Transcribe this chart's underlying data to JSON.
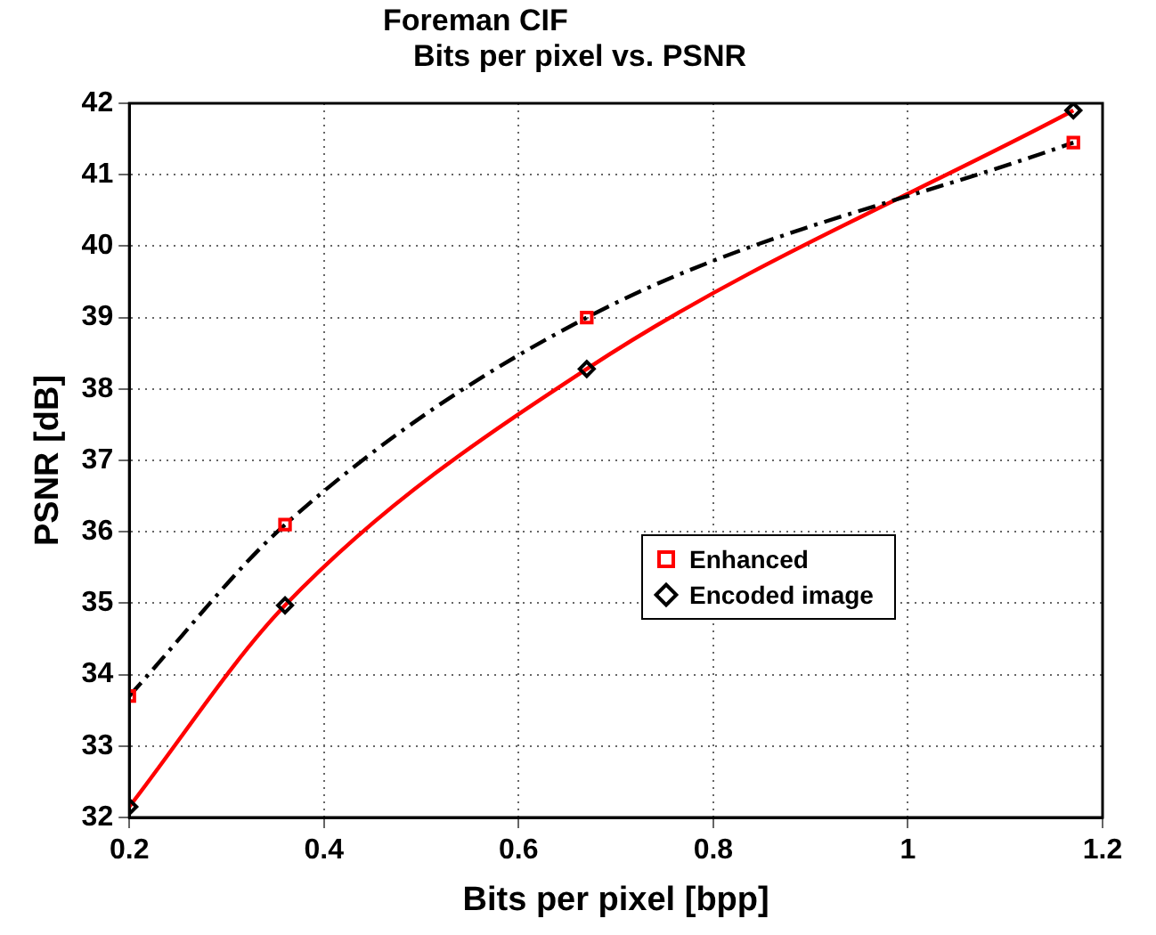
{
  "chart_data": {
    "type": "scatter",
    "title": "Foreman CIF",
    "subtitle": "Bits per pixel vs. PSNR",
    "xlabel": "Bits per pixel [bpp]",
    "ylabel": "PSNR [dB]",
    "xlim": [
      0.2,
      1.2
    ],
    "xticks": [
      0.2,
      0.4,
      0.6,
      0.8,
      1,
      1.2
    ],
    "ylim": [
      32,
      42
    ],
    "yticks": [
      32,
      33,
      34,
      35,
      36,
      37,
      38,
      39,
      40,
      41,
      42
    ],
    "grid": true,
    "legend": "right",
    "series": [
      {
        "name": "Enhanced",
        "type": "scatter",
        "color": "#ff0000",
        "marker": "square",
        "x": [
          0.2,
          0.36,
          0.67,
          1.17
        ],
        "values": [
          33.7,
          36.1,
          39.0,
          41.45
        ]
      },
      {
        "name": "Encoded image",
        "type": "scatter",
        "color": "#000000",
        "marker": "diamond",
        "x": [
          0.2,
          0.36,
          0.67,
          1.17
        ],
        "values": [
          32.15,
          34.97,
          38.28,
          41.9
        ]
      },
      {
        "type": "line",
        "color": "#000000",
        "line_style": "dashed",
        "x": [
          0.2,
          0.36,
          0.67,
          1.17
        ],
        "values": [
          33.7,
          36.1,
          39.0,
          41.45
        ]
      },
      {
        "type": "line",
        "color": "#ff0000",
        "line_style": "solid",
        "x": [
          0.2,
          0.36,
          0.67,
          1.17
        ],
        "values": [
          32.15,
          34.97,
          38.28,
          41.9
        ]
      }
    ]
  }
}
